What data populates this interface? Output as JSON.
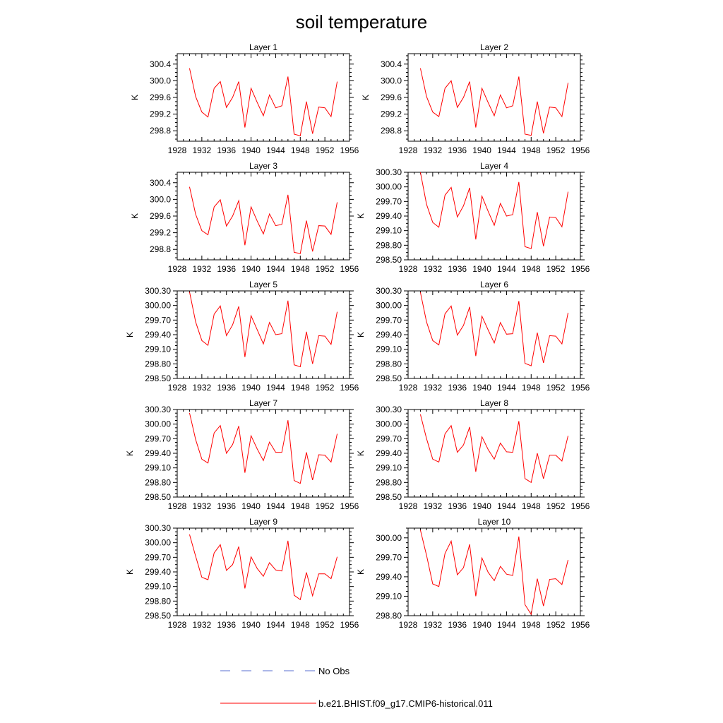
{
  "chart_data": {
    "type": "line",
    "title": "soil temperature",
    "ylabel": "K",
    "x_ticks": [
      1928,
      1932,
      1936,
      1940,
      1944,
      1948,
      1952,
      1956
    ],
    "x": [
      1930,
      1931,
      1932,
      1933,
      1934,
      1935,
      1936,
      1937,
      1938,
      1939,
      1940,
      1941,
      1942,
      1943,
      1944,
      1945,
      1946,
      1947,
      1948,
      1949,
      1950,
      1951,
      1952,
      1953,
      1954
    ],
    "xlim": [
      1928,
      1956
    ],
    "legend": [
      {
        "label": "No Obs",
        "style": "dashed",
        "color": "#5a6fd0"
      },
      {
        "label": "b.e21.BHIST.f09_g17.CMIP6-historical.011",
        "style": "solid",
        "color": "#ff0000"
      }
    ],
    "panels": [
      {
        "title": "Layer 1",
        "ylim": [
          298.55,
          300.65
        ],
        "yticks": [
          "300.4",
          "300.0",
          "299.6",
          "299.2",
          "298.8"
        ],
        "values": [
          300.3,
          299.62,
          299.25,
          299.13,
          299.82,
          299.98,
          299.36,
          299.6,
          299.98,
          298.88,
          299.82,
          299.48,
          299.16,
          299.66,
          299.35,
          299.4,
          300.1,
          298.72,
          298.68,
          299.5,
          298.73,
          299.37,
          299.35,
          299.14,
          299.98
        ]
      },
      {
        "title": "Layer 2",
        "ylim": [
          298.55,
          300.65
        ],
        "yticks": [
          "300.4",
          "300.0",
          "299.6",
          "299.2",
          "298.8"
        ],
        "values": [
          300.3,
          299.62,
          299.25,
          299.14,
          299.82,
          300.0,
          299.36,
          299.6,
          299.98,
          298.88,
          299.82,
          299.48,
          299.16,
          299.66,
          299.35,
          299.4,
          300.1,
          298.72,
          298.69,
          299.5,
          298.74,
          299.37,
          299.35,
          299.14,
          299.95
        ]
      },
      {
        "title": "Layer 3",
        "ylim": [
          298.55,
          300.65
        ],
        "yticks": [
          "300.4",
          "300.0",
          "299.6",
          "299.2",
          "298.8"
        ],
        "values": [
          300.3,
          299.64,
          299.25,
          299.15,
          299.82,
          299.99,
          299.36,
          299.6,
          299.97,
          298.9,
          299.82,
          299.48,
          299.17,
          299.65,
          299.37,
          299.4,
          300.11,
          298.73,
          298.7,
          299.49,
          298.75,
          299.37,
          299.36,
          299.16,
          299.93
        ]
      },
      {
        "title": "Layer 4",
        "ylim": [
          298.5,
          300.3
        ],
        "yticks": [
          "300.30",
          "300.00",
          "299.70",
          "299.40",
          "299.10",
          "298.80",
          "298.50"
        ],
        "values": [
          300.3,
          299.64,
          299.27,
          299.17,
          299.83,
          299.99,
          299.38,
          299.61,
          299.98,
          298.92,
          299.81,
          299.5,
          299.21,
          299.66,
          299.4,
          299.43,
          300.1,
          298.77,
          298.73,
          299.48,
          298.78,
          299.38,
          299.37,
          299.18,
          299.9
        ]
      },
      {
        "title": "Layer 5",
        "ylim": [
          298.5,
          300.3
        ],
        "yticks": [
          "300.30",
          "300.00",
          "299.70",
          "299.40",
          "299.10",
          "298.80",
          "298.50"
        ],
        "values": [
          300.28,
          299.66,
          299.28,
          299.18,
          299.82,
          299.99,
          299.38,
          299.6,
          299.98,
          298.94,
          299.79,
          299.5,
          299.21,
          299.65,
          299.4,
          299.42,
          300.1,
          298.78,
          298.74,
          299.46,
          298.8,
          299.38,
          299.37,
          299.2,
          299.87
        ]
      },
      {
        "title": "Layer 6",
        "ylim": [
          298.5,
          300.3
        ],
        "yticks": [
          "300.30",
          "300.00",
          "299.70",
          "299.40",
          "299.10",
          "298.80",
          "298.50"
        ],
        "values": [
          300.27,
          299.66,
          299.28,
          299.19,
          299.83,
          299.99,
          299.39,
          299.59,
          299.97,
          298.96,
          299.78,
          299.5,
          299.23,
          299.65,
          299.41,
          299.42,
          300.09,
          298.81,
          298.76,
          299.44,
          298.82,
          299.38,
          299.37,
          299.21,
          299.85
        ]
      },
      {
        "title": "Layer 7",
        "ylim": [
          298.5,
          300.3
        ],
        "yticks": [
          "300.30",
          "300.00",
          "299.70",
          "299.40",
          "299.10",
          "298.80",
          "298.50"
        ],
        "values": [
          300.23,
          299.68,
          299.28,
          299.2,
          299.82,
          299.97,
          299.4,
          299.58,
          299.96,
          299.0,
          299.76,
          299.49,
          299.25,
          299.63,
          299.42,
          299.42,
          300.08,
          298.84,
          298.78,
          299.42,
          298.85,
          299.37,
          299.36,
          299.22,
          299.8
        ]
      },
      {
        "title": "Layer 8",
        "ylim": [
          298.5,
          300.3
        ],
        "yticks": [
          "300.30",
          "300.00",
          "299.70",
          "299.40",
          "299.10",
          "298.80",
          "298.50"
        ],
        "values": [
          300.2,
          299.7,
          299.28,
          299.22,
          299.8,
          299.97,
          299.42,
          299.57,
          299.94,
          299.02,
          299.74,
          299.48,
          299.28,
          299.61,
          299.43,
          299.42,
          300.06,
          298.88,
          298.8,
          299.4,
          298.88,
          299.36,
          299.36,
          299.24,
          299.76
        ]
      },
      {
        "title": "Layer 9",
        "ylim": [
          298.5,
          300.3
        ],
        "yticks": [
          "300.30",
          "300.00",
          "299.70",
          "299.40",
          "299.10",
          "298.80",
          "298.50"
        ],
        "values": [
          300.17,
          299.72,
          299.29,
          299.24,
          299.79,
          299.96,
          299.43,
          299.55,
          299.92,
          299.06,
          299.71,
          299.47,
          299.31,
          299.59,
          299.44,
          299.42,
          300.04,
          298.92,
          298.83,
          299.39,
          298.91,
          299.36,
          299.36,
          299.26,
          299.71
        ]
      },
      {
        "title": "Layer 10",
        "ylim": [
          298.8,
          300.15
        ],
        "yticks": [
          "300.00",
          "299.70",
          "299.40",
          "299.10",
          "298.80"
        ],
        "values": [
          300.12,
          299.73,
          299.29,
          299.25,
          299.76,
          299.95,
          299.43,
          299.54,
          299.9,
          299.1,
          299.69,
          299.47,
          299.34,
          299.56,
          299.44,
          299.42,
          300.02,
          298.97,
          298.82,
          299.37,
          298.95,
          299.36,
          299.37,
          299.28,
          299.66
        ]
      }
    ]
  }
}
